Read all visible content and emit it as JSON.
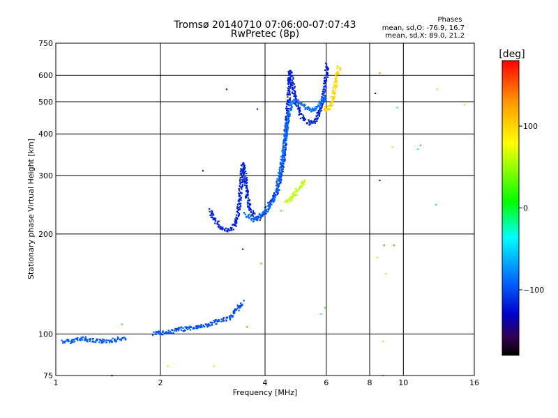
{
  "chart_data": {
    "type": "scatter",
    "title": "Tromsø 20140710 07:06:00-07:07:43",
    "subtitle": "RwPretec (8p)",
    "phases": {
      "title": "Phases",
      "line_o": "mean, sd,O: -76.9, 16.7",
      "line_x": "mean, sd,X: 89.0, 21.2"
    },
    "xlabel": "Frequency [MHz]",
    "ylabel": "Stationary phase Virtual Height [km]",
    "x_scale": "log",
    "y_scale": "log",
    "xlim": [
      1,
      16
    ],
    "ylim": [
      75,
      750
    ],
    "x_ticks": [
      1,
      2,
      4,
      6,
      8,
      10,
      16
    ],
    "x_tick_labels": [
      "1",
      "2",
      "4",
      "6",
      "8",
      "10",
      "16"
    ],
    "x_grid": [
      2,
      4,
      6,
      8,
      10
    ],
    "y_ticks": [
      75,
      100,
      200,
      300,
      400,
      500,
      600,
      750
    ],
    "y_tick_labels": [
      "75",
      "100",
      "200",
      "300",
      "400",
      "500",
      "600",
      "750"
    ],
    "y_grid": [
      100,
      200,
      300,
      400,
      500,
      600
    ],
    "grid": true,
    "colorbar": {
      "label": "[deg]",
      "range": [
        -180,
        180
      ],
      "ticks": [
        100,
        0,
        -100
      ],
      "tick_labels": [
        "100",
        "0",
        "−100"
      ]
    },
    "traces": [
      {
        "phase": -95,
        "points": [
          [
            1.05,
            95
          ],
          [
            1.1,
            95
          ],
          [
            1.14,
            96
          ],
          [
            1.2,
            97
          ],
          [
            1.33,
            95
          ],
          [
            1.48,
            96
          ],
          [
            1.55,
            97
          ],
          [
            1.6,
            96
          ]
        ]
      },
      {
        "phase": -100,
        "points": [
          [
            1.92,
            100
          ],
          [
            2.0,
            101
          ],
          [
            2.1,
            101
          ],
          [
            2.25,
            103
          ],
          [
            2.4,
            104
          ],
          [
            2.55,
            105
          ],
          [
            2.7,
            106
          ],
          [
            2.85,
            108
          ],
          [
            3.0,
            110
          ],
          [
            3.15,
            112
          ],
          [
            3.25,
            115
          ],
          [
            3.35,
            120
          ],
          [
            3.45,
            125
          ]
        ]
      },
      {
        "phase": -118,
        "points": [
          [
            2.78,
            235
          ],
          [
            2.85,
            222
          ],
          [
            2.95,
            212
          ],
          [
            3.05,
            206
          ],
          [
            3.15,
            205
          ],
          [
            3.25,
            210
          ],
          [
            3.32,
            220
          ],
          [
            3.36,
            240
          ],
          [
            3.4,
            270
          ],
          [
            3.45,
            325
          ],
          [
            3.5,
            300
          ],
          [
            3.55,
            260
          ],
          [
            3.62,
            240
          ],
          [
            3.72,
            225
          ],
          [
            3.85,
            222
          ],
          [
            3.98,
            230
          ],
          [
            4.12,
            245
          ],
          [
            4.3,
            265
          ],
          [
            4.45,
            300
          ],
          [
            4.55,
            360
          ],
          [
            4.62,
            440
          ],
          [
            4.68,
            520
          ],
          [
            4.72,
            620
          ],
          [
            4.8,
            560
          ],
          [
            4.9,
            500
          ],
          [
            5.05,
            460
          ],
          [
            5.2,
            440
          ],
          [
            5.4,
            430
          ],
          [
            5.6,
            440
          ],
          [
            5.8,
            480
          ],
          [
            5.95,
            560
          ],
          [
            6.05,
            650
          ]
        ]
      },
      {
        "phase": -88,
        "points": [
          [
            3.5,
            230
          ],
          [
            3.7,
            220
          ],
          [
            3.9,
            228
          ],
          [
            4.1,
            240
          ],
          [
            4.3,
            262
          ],
          [
            4.48,
            330
          ],
          [
            4.62,
            420
          ],
          [
            4.75,
            500
          ],
          [
            5.0,
            500
          ],
          [
            5.25,
            480
          ],
          [
            5.5,
            470
          ],
          [
            5.75,
            490
          ],
          [
            6.0,
            520
          ]
        ]
      },
      {
        "phase": 60,
        "points": [
          [
            4.6,
            250
          ],
          [
            4.75,
            255
          ],
          [
            4.9,
            265
          ],
          [
            5.05,
            280
          ],
          [
            5.2,
            290
          ]
        ]
      },
      {
        "phase": 100,
        "points": [
          [
            5.95,
            480
          ],
          [
            6.05,
            470
          ],
          [
            6.15,
            480
          ],
          [
            6.25,
            510
          ],
          [
            6.35,
            550
          ],
          [
            6.45,
            600
          ],
          [
            6.55,
            640
          ]
        ]
      }
    ],
    "scatter": [
      {
        "phase": -118,
        "points": [
          [
            3.1,
            545
          ],
          [
            3.8,
            475
          ],
          [
            2.65,
            310
          ],
          [
            3.45,
            180
          ],
          [
            8.3,
            530
          ],
          [
            8.55,
            290
          ],
          [
            1.45,
            75
          ]
        ]
      },
      {
        "phase": 30,
        "points": [
          [
            4.45,
            235
          ],
          [
            1.55,
            107
          ],
          [
            5.95,
            120
          ]
        ]
      },
      {
        "phase": 140,
        "points": [
          [
            4.35,
            285
          ],
          [
            8.55,
            610
          ],
          [
            11.2,
            370
          ],
          [
            8.8,
            185
          ],
          [
            9.4,
            185
          ],
          [
            3.9,
            163
          ],
          [
            3.55,
            105
          ]
        ]
      },
      {
        "phase": 100,
        "points": [
          [
            8.4,
            170
          ],
          [
            8.9,
            152
          ],
          [
            12.5,
            545
          ],
          [
            15,
            490
          ],
          [
            9.3,
            365
          ],
          [
            8.75,
            95
          ],
          [
            2.1,
            80
          ],
          [
            2.85,
            80
          ]
        ]
      },
      {
        "phase": -20,
        "points": [
          [
            5.8,
            115
          ],
          [
            8.75,
            75
          ],
          [
            12.4,
            245
          ],
          [
            11,
            360
          ],
          [
            9.6,
            480
          ]
        ]
      }
    ]
  }
}
